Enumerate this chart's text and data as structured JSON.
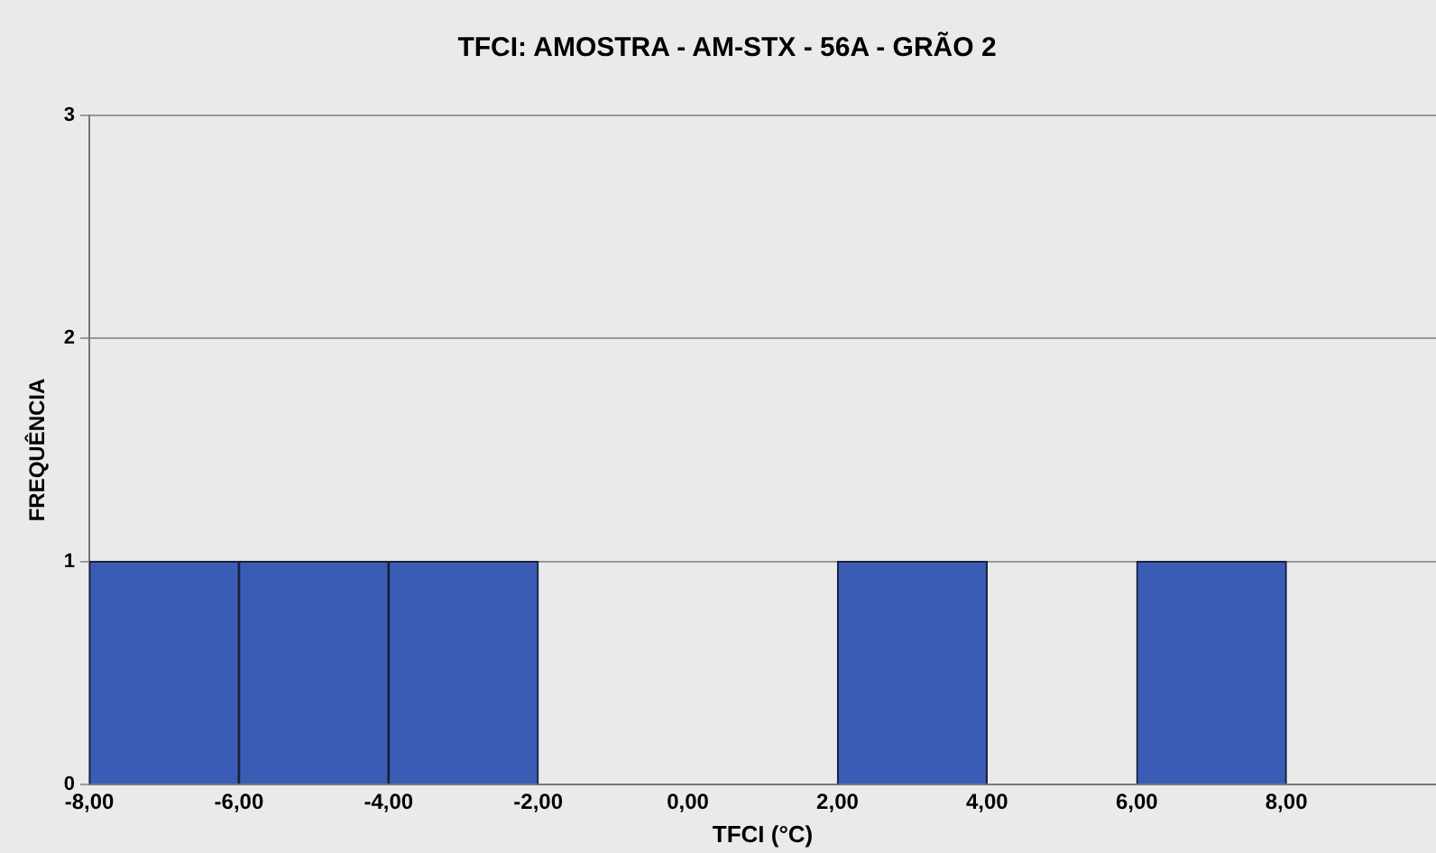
{
  "chart_data": {
    "type": "histogram",
    "title": "TFCI: AMOSTRA - AM-STX - 56A - GRÃO 2",
    "xlabel": "TFCI (°C)",
    "ylabel": "FREQUÊNCIA",
    "bins": [
      -8,
      -6,
      -4,
      -2,
      0,
      2,
      4,
      6,
      8,
      10
    ],
    "values": [
      1,
      1,
      1,
      0,
      0,
      1,
      0,
      1,
      0
    ],
    "color": "#3a5cb4",
    "xlim": [
      -8,
      10
    ],
    "xticks": [
      {
        "value": -8,
        "label": "-8,00"
      },
      {
        "value": -6,
        "label": "-6,00"
      },
      {
        "value": -4,
        "label": "-4,00"
      },
      {
        "value": -2,
        "label": "-2,00"
      },
      {
        "value": 0,
        "label": "0,00"
      },
      {
        "value": 2,
        "label": "2,00"
      },
      {
        "value": 4,
        "label": "4,00"
      },
      {
        "value": 6,
        "label": "6,00"
      },
      {
        "value": 8,
        "label": "8,00"
      }
    ],
    "ylim": [
      0,
      3
    ],
    "yticks": [
      0,
      1,
      2,
      3
    ],
    "grid": "y",
    "legend": false
  }
}
